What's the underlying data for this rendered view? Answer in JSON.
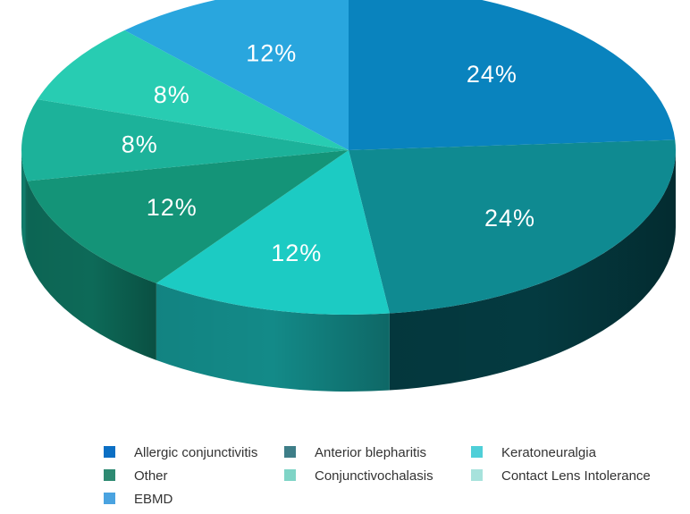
{
  "chart_data": {
    "type": "pie",
    "three_d": true,
    "start_angle_deg": 90,
    "direction": "clockwise",
    "legend_position": "bottom",
    "slices": [
      {
        "label": "Allergic conjunctivitis",
        "value": 24,
        "display": "24%",
        "top_color": "#0983be",
        "side_color": "#06557d",
        "legend_color": "#0b6fc4"
      },
      {
        "label": "Anterior blepharitis",
        "value": 24,
        "display": "24%",
        "top_color": "#0f8a91",
        "side_color": "#043a40",
        "legend_color": "#3e7e88"
      },
      {
        "label": "Keratoneuralgia",
        "value": 12,
        "display": "12%",
        "top_color": "#1ccbc3",
        "side_color": "#138a88",
        "legend_color": "#4fcfd8"
      },
      {
        "label": "Other",
        "value": 12,
        "display": "12%",
        "top_color": "#149478",
        "side_color": "#0d6a58",
        "legend_color": "#2e8a72"
      },
      {
        "label": "Conjunctivochalasis",
        "value": 8,
        "display": "8%",
        "top_color": "#1cb29a",
        "side_color": "#117e6c",
        "legend_color": "#7fd4c6"
      },
      {
        "label": "Contact Lens Intolerance",
        "value": 8,
        "display": "8%",
        "top_color": "#28ccb2",
        "side_color": "#18917e",
        "legend_color": "#a7e2dc"
      },
      {
        "label": "EBMD",
        "value": 12,
        "display": "12%",
        "top_color": "#29a6de",
        "side_color": "#1a76a0",
        "legend_color": "#4aa3e0"
      }
    ]
  }
}
